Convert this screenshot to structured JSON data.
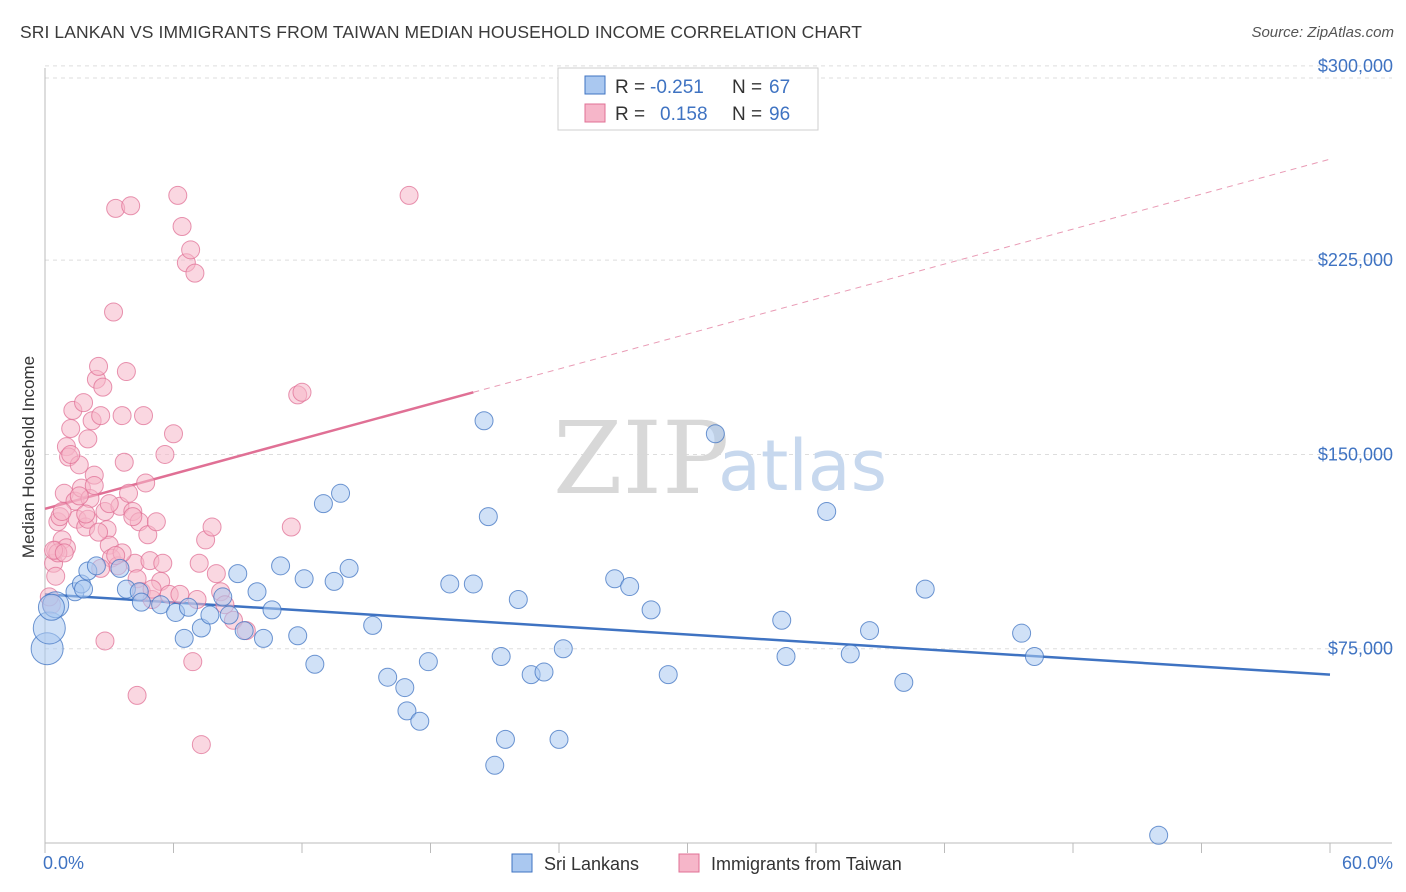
{
  "title": "SRI LANKAN VS IMMIGRANTS FROM TAIWAN MEDIAN HOUSEHOLD INCOME CORRELATION CHART",
  "source": "Source: ZipAtlas.com",
  "watermark": {
    "zip": "ZIP",
    "atlas": "atlas"
  },
  "legend_box": [
    {
      "r_label": "R =",
      "r_value": "-0.251",
      "n_label": "N =",
      "n_value": "67"
    },
    {
      "r_label": "R =",
      "r_value": "0.158",
      "n_label": "N =",
      "n_value": "96"
    }
  ],
  "colors": {
    "blue": "#3f73c2",
    "blue_fill": "#aac8f0",
    "pink": "#e07095",
    "pink_fill": "#f6b6c9"
  },
  "chart_data": {
    "type": "scatter",
    "title": "SRI LANKAN VS IMMIGRANTS FROM TAIWAN MEDIAN HOUSEHOLD INCOME CORRELATION CHART",
    "xlabel": "",
    "ylabel": "Median Household Income",
    "xlim": [
      0,
      60
    ],
    "ylim": [
      0,
      310000
    ],
    "x_tick_labels": [
      "0.0%",
      "60.0%"
    ],
    "y_ticks": [
      75000,
      150000,
      225000,
      300000
    ],
    "y_tick_labels": [
      "$75,000",
      "$150,000",
      "$225,000",
      "$300,000"
    ],
    "grid": true,
    "legend_position": "top-center",
    "series": [
      {
        "name": "Sri Lankans",
        "color": "#3f73c2",
        "trend": {
          "x": [
            0,
            60
          ],
          "y": [
            96000,
            65000
          ],
          "style": "solid"
        },
        "points": [
          [
            0.1,
            75000
          ],
          [
            0.2,
            83000
          ],
          [
            0.5,
            92000
          ],
          [
            1.4,
            97000
          ],
          [
            1.7,
            100000
          ],
          [
            2.0,
            105000
          ],
          [
            2.4,
            107000
          ],
          [
            3.8,
            98000
          ],
          [
            4.4,
            97000
          ],
          [
            4.5,
            93000
          ],
          [
            5.4,
            92000
          ],
          [
            6.1,
            89000
          ],
          [
            6.5,
            79000
          ],
          [
            6.7,
            91000
          ],
          [
            7.3,
            83000
          ],
          [
            7.7,
            88000
          ],
          [
            8.3,
            95000
          ],
          [
            8.6,
            88000
          ],
          [
            9.0,
            104000
          ],
          [
            9.3,
            82000
          ],
          [
            9.9,
            97000
          ],
          [
            10.2,
            79000
          ],
          [
            10.6,
            90000
          ],
          [
            11.0,
            107000
          ],
          [
            11.8,
            80000
          ],
          [
            12.1,
            102000
          ],
          [
            12.6,
            69000
          ],
          [
            13.0,
            131000
          ],
          [
            13.5,
            101000
          ],
          [
            13.8,
            135000
          ],
          [
            14.2,
            106000
          ],
          [
            15.3,
            84000
          ],
          [
            16.0,
            64000
          ],
          [
            16.8,
            60000
          ],
          [
            16.9,
            51000
          ],
          [
            17.5,
            47000
          ],
          [
            17.9,
            70000
          ],
          [
            18.9,
            100000
          ],
          [
            20.0,
            100000
          ],
          [
            20.5,
            163000
          ],
          [
            20.7,
            126000
          ],
          [
            21.0,
            30000
          ],
          [
            21.3,
            72000
          ],
          [
            21.5,
            40000
          ],
          [
            22.1,
            94000
          ],
          [
            22.7,
            65000
          ],
          [
            23.3,
            66000
          ],
          [
            24.0,
            40000
          ],
          [
            24.2,
            75000
          ],
          [
            26.6,
            102000
          ],
          [
            27.3,
            99000
          ],
          [
            28.3,
            90000
          ],
          [
            29.1,
            65000
          ],
          [
            31.3,
            158000
          ],
          [
            34.4,
            86000
          ],
          [
            34.6,
            72000
          ],
          [
            36.5,
            128000
          ],
          [
            37.6,
            73000
          ],
          [
            38.5,
            82000
          ],
          [
            40.1,
            62000
          ],
          [
            41.1,
            98000
          ],
          [
            45.6,
            81000
          ],
          [
            46.2,
            72000
          ],
          [
            52.0,
            3000
          ],
          [
            0.3,
            91000
          ],
          [
            3.5,
            106000
          ],
          [
            1.8,
            98000
          ]
        ]
      },
      {
        "name": "Immigrants from Taiwan",
        "color": "#e07095",
        "trend": {
          "x": [
            0,
            20
          ],
          "y": [
            129000,
            174000
          ],
          "style": "solid",
          "extension": {
            "x": [
              20,
              60
            ],
            "y": [
              174000,
              264000
            ],
            "style": "dashed"
          }
        },
        "points": [
          [
            0.3,
            92000
          ],
          [
            0.4,
            108000
          ],
          [
            0.5,
            113000
          ],
          [
            0.6,
            124000
          ],
          [
            0.7,
            126000
          ],
          [
            0.8,
            117000
          ],
          [
            0.9,
            135000
          ],
          [
            1.0,
            153000
          ],
          [
            1.1,
            149000
          ],
          [
            1.2,
            160000
          ],
          [
            1.3,
            167000
          ],
          [
            1.4,
            132000
          ],
          [
            1.5,
            125000
          ],
          [
            1.6,
            146000
          ],
          [
            1.7,
            137000
          ],
          [
            1.8,
            170000
          ],
          [
            1.9,
            122000
          ],
          [
            2.0,
            156000
          ],
          [
            2.1,
            133000
          ],
          [
            2.2,
            163000
          ],
          [
            2.3,
            142000
          ],
          [
            2.4,
            179000
          ],
          [
            2.5,
            184000
          ],
          [
            2.6,
            165000
          ],
          [
            2.7,
            176000
          ],
          [
            2.8,
            128000
          ],
          [
            2.9,
            121000
          ],
          [
            3.0,
            115000
          ],
          [
            3.1,
            110000
          ],
          [
            3.2,
            205000
          ],
          [
            3.3,
            245000
          ],
          [
            3.4,
            107000
          ],
          [
            3.5,
            130000
          ],
          [
            3.6,
            165000
          ],
          [
            3.7,
            147000
          ],
          [
            3.8,
            182000
          ],
          [
            3.9,
            135000
          ],
          [
            4.0,
            246000
          ],
          [
            4.1,
            128000
          ],
          [
            4.2,
            108000
          ],
          [
            4.3,
            102000
          ],
          [
            4.4,
            124000
          ],
          [
            4.5,
            97000
          ],
          [
            4.6,
            165000
          ],
          [
            4.7,
            139000
          ],
          [
            4.8,
            119000
          ],
          [
            4.9,
            109000
          ],
          [
            5.0,
            94000
          ],
          [
            5.2,
            124000
          ],
          [
            5.4,
            101000
          ],
          [
            5.6,
            150000
          ],
          [
            5.8,
            96000
          ],
          [
            6.0,
            158000
          ],
          [
            6.2,
            250000
          ],
          [
            6.4,
            238000
          ],
          [
            6.6,
            224000
          ],
          [
            6.8,
            229000
          ],
          [
            7.0,
            220000
          ],
          [
            7.2,
            108000
          ],
          [
            7.5,
            117000
          ],
          [
            7.8,
            122000
          ],
          [
            8.0,
            104000
          ],
          [
            8.2,
            97000
          ],
          [
            8.4,
            92000
          ],
          [
            8.8,
            86000
          ],
          [
            9.4,
            82000
          ],
          [
            11.5,
            122000
          ],
          [
            11.8,
            173000
          ],
          [
            12.0,
            174000
          ],
          [
            17.0,
            250000
          ],
          [
            6.9,
            70000
          ],
          [
            7.3,
            38000
          ],
          [
            4.3,
            57000
          ],
          [
            2.8,
            78000
          ],
          [
            0.2,
            95000
          ],
          [
            1.0,
            114000
          ],
          [
            0.6,
            112000
          ],
          [
            2.3,
            138000
          ],
          [
            3.0,
            131000
          ],
          [
            5.5,
            108000
          ],
          [
            0.8,
            128000
          ],
          [
            1.6,
            134000
          ],
          [
            2.0,
            125000
          ],
          [
            4.1,
            126000
          ],
          [
            6.3,
            96000
          ],
          [
            1.2,
            150000
          ],
          [
            0.4,
            113000
          ],
          [
            3.6,
            112000
          ],
          [
            2.6,
            106000
          ],
          [
            0.9,
            112000
          ],
          [
            7.1,
            94000
          ],
          [
            5.0,
            98000
          ],
          [
            1.9,
            127000
          ],
          [
            2.5,
            120000
          ],
          [
            0.5,
            103000
          ],
          [
            3.3,
            111000
          ]
        ]
      }
    ]
  }
}
